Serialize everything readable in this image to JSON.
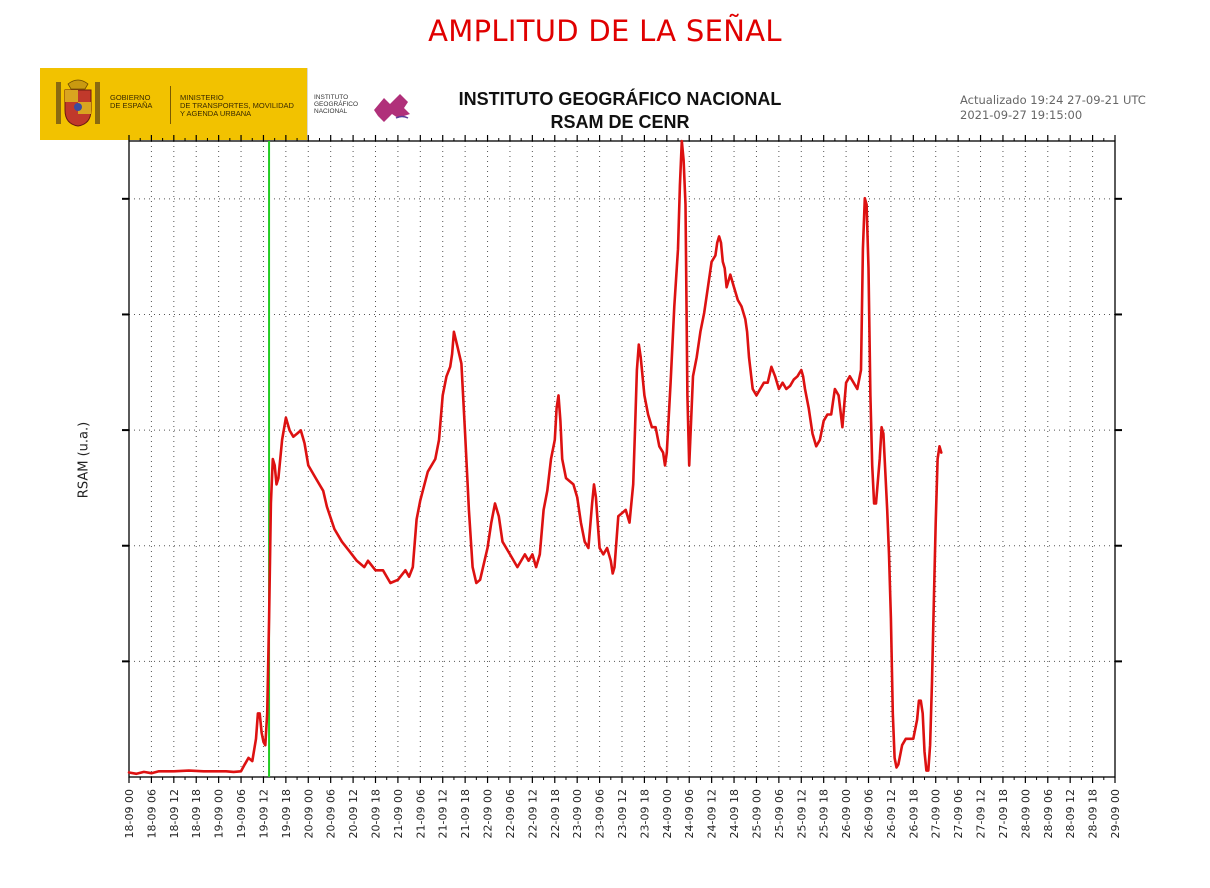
{
  "page_title": "AMPLITUD DE LA SEÑAL",
  "logos": {
    "gobierno": "GOBIERNO\nDE ESPAÑA",
    "ministerio": "MINISTERIO\nDE TRANSPORTES, MOVILIDAD\nY AGENDA URBANA",
    "instituto": "INSTITUTO\nGEOGRÁFICO\nNACIONAL",
    "colors": {
      "band": "#f2c200",
      "ign_mark": "#b0307a"
    }
  },
  "header": {
    "org": "INSTITUTO GEOGRÁFICO NACIONAL",
    "subtitle": "RSAM DE CENR",
    "updated": "Actualizado 19:24 27-09-21 UTC",
    "timestamp": "2021-09-27 19:15:00"
  },
  "chart_data": {
    "type": "line",
    "ylabel": "RSAM (u.a.)",
    "xlabel": "",
    "x_unit": "hours since 18-09 00:00",
    "xlim": [
      0,
      264
    ],
    "ylim": [
      0,
      1
    ],
    "y_tick_labels_shown": false,
    "grid": true,
    "x_tick_labels": [
      "18-09 00",
      "18-09 06",
      "18-09 12",
      "18-09 18",
      "19-09 00",
      "19-09 06",
      "19-09 12",
      "19-09 18",
      "20-09 00",
      "20-09 06",
      "20-09 12",
      "20-09 18",
      "21-09 00",
      "21-09 06",
      "21-09 12",
      "21-09 18",
      "22-09 00",
      "22-09 06",
      "22-09 12",
      "22-09 18",
      "23-09 00",
      "23-09 06",
      "23-09 12",
      "23-09 18",
      "24-09 00",
      "24-09 06",
      "24-09 12",
      "24-09 18",
      "25-09 00",
      "25-09 06",
      "25-09 12",
      "25-09 18",
      "26-09 00",
      "26-09 06",
      "26-09 12",
      "26-09 18",
      "27-09 00",
      "27-09 06",
      "27-09 12",
      "27-09 18",
      "28-09 00",
      "28-09 06",
      "28-09 12",
      "28-09 18",
      "29-09 00"
    ],
    "marker_line": {
      "x": 37.5,
      "color": "#22cc22"
    },
    "series": [
      {
        "color": "#dd1111",
        "points": [
          [
            0,
            0.007
          ],
          [
            2,
            0.005
          ],
          [
            4,
            0.008
          ],
          [
            6,
            0.006
          ],
          [
            8,
            0.009
          ],
          [
            12,
            0.009
          ],
          [
            16,
            0.01
          ],
          [
            20,
            0.009
          ],
          [
            24,
            0.009
          ],
          [
            26,
            0.009
          ],
          [
            28,
            0.008
          ],
          [
            30,
            0.009
          ],
          [
            31,
            0.02
          ],
          [
            32,
            0.03
          ],
          [
            33,
            0.025
          ],
          [
            34,
            0.06
          ],
          [
            34.5,
            0.1
          ],
          [
            35,
            0.1
          ],
          [
            35.5,
            0.07
          ],
          [
            36,
            0.055
          ],
          [
            36.5,
            0.05
          ],
          [
            37,
            0.1
          ],
          [
            37.5,
            0.25
          ],
          [
            38,
            0.43
          ],
          [
            38.5,
            0.5
          ],
          [
            39,
            0.49
          ],
          [
            39.5,
            0.46
          ],
          [
            40,
            0.47
          ],
          [
            41,
            0.53
          ],
          [
            42,
            0.565
          ],
          [
            43,
            0.545
          ],
          [
            44,
            0.535
          ],
          [
            45,
            0.54
          ],
          [
            46,
            0.545
          ],
          [
            47,
            0.525
          ],
          [
            48,
            0.49
          ],
          [
            50,
            0.47
          ],
          [
            52,
            0.45
          ],
          [
            53,
            0.425
          ],
          [
            55,
            0.39
          ],
          [
            57,
            0.37
          ],
          [
            59,
            0.355
          ],
          [
            61,
            0.34
          ],
          [
            63,
            0.33
          ],
          [
            64,
            0.34
          ],
          [
            66,
            0.325
          ],
          [
            68,
            0.325
          ],
          [
            70,
            0.305
          ],
          [
            72,
            0.31
          ],
          [
            74,
            0.325
          ],
          [
            75,
            0.315
          ],
          [
            76,
            0.33
          ],
          [
            77,
            0.405
          ],
          [
            78,
            0.435
          ],
          [
            80,
            0.48
          ],
          [
            82,
            0.5
          ],
          [
            83,
            0.53
          ],
          [
            84,
            0.6
          ],
          [
            85,
            0.63
          ],
          [
            86,
            0.645
          ],
          [
            86.5,
            0.665
          ],
          [
            87,
            0.7
          ],
          [
            88,
            0.675
          ],
          [
            89,
            0.65
          ],
          [
            90,
            0.54
          ],
          [
            91,
            0.42
          ],
          [
            92,
            0.33
          ],
          [
            93,
            0.305
          ],
          [
            94,
            0.31
          ],
          [
            96,
            0.36
          ],
          [
            97,
            0.4
          ],
          [
            98,
            0.43
          ],
          [
            99,
            0.41
          ],
          [
            100,
            0.37
          ],
          [
            102,
            0.35
          ],
          [
            104,
            0.33
          ],
          [
            106,
            0.35
          ],
          [
            107,
            0.34
          ],
          [
            108,
            0.35
          ],
          [
            109,
            0.33
          ],
          [
            110,
            0.35
          ],
          [
            111,
            0.42
          ],
          [
            112,
            0.45
          ],
          [
            113,
            0.5
          ],
          [
            114,
            0.53
          ],
          [
            114.5,
            0.58
          ],
          [
            115,
            0.6
          ],
          [
            115.5,
            0.56
          ],
          [
            116,
            0.5
          ],
          [
            117,
            0.47
          ],
          [
            119,
            0.46
          ],
          [
            120,
            0.44
          ],
          [
            121,
            0.4
          ],
          [
            122,
            0.37
          ],
          [
            123,
            0.36
          ],
          [
            124,
            0.43
          ],
          [
            124.5,
            0.46
          ],
          [
            125,
            0.44
          ],
          [
            125.5,
            0.4
          ],
          [
            126,
            0.36
          ],
          [
            127,
            0.35
          ],
          [
            128,
            0.36
          ],
          [
            129,
            0.34
          ],
          [
            129.5,
            0.32
          ],
          [
            130,
            0.33
          ],
          [
            131,
            0.41
          ],
          [
            132,
            0.415
          ],
          [
            133,
            0.42
          ],
          [
            134,
            0.4
          ],
          [
            135,
            0.46
          ],
          [
            135.5,
            0.55
          ],
          [
            136,
            0.64
          ],
          [
            136.5,
            0.68
          ],
          [
            137,
            0.66
          ],
          [
            138,
            0.6
          ],
          [
            139,
            0.57
          ],
          [
            140,
            0.55
          ],
          [
            141,
            0.55
          ],
          [
            142,
            0.52
          ],
          [
            143,
            0.51
          ],
          [
            143.5,
            0.49
          ],
          [
            144,
            0.51
          ],
          [
            145,
            0.62
          ],
          [
            146,
            0.74
          ],
          [
            147,
            0.83
          ],
          [
            147.5,
            0.93
          ],
          [
            148,
            1.0
          ],
          [
            148.5,
            0.97
          ],
          [
            149,
            0.9
          ],
          [
            149.5,
            0.6
          ],
          [
            150,
            0.49
          ],
          [
            151,
            0.63
          ],
          [
            152,
            0.66
          ],
          [
            153,
            0.7
          ],
          [
            154,
            0.73
          ],
          [
            155,
            0.77
          ],
          [
            156,
            0.81
          ],
          [
            157,
            0.82
          ],
          [
            157.5,
            0.84
          ],
          [
            158,
            0.85
          ],
          [
            158.5,
            0.84
          ],
          [
            159,
            0.81
          ],
          [
            159.5,
            0.8
          ],
          [
            160,
            0.77
          ],
          [
            161,
            0.79
          ],
          [
            162,
            0.77
          ],
          [
            163,
            0.75
          ],
          [
            164,
            0.74
          ],
          [
            165,
            0.72
          ],
          [
            165.5,
            0.7
          ],
          [
            166,
            0.66
          ],
          [
            167,
            0.61
          ],
          [
            168,
            0.6
          ],
          [
            169,
            0.61
          ],
          [
            170,
            0.62
          ],
          [
            171,
            0.62
          ],
          [
            172,
            0.645
          ],
          [
            173,
            0.63
          ],
          [
            174,
            0.61
          ],
          [
            175,
            0.62
          ],
          [
            176,
            0.61
          ],
          [
            177,
            0.615
          ],
          [
            178,
            0.625
          ],
          [
            179,
            0.63
          ],
          [
            179.5,
            0.635
          ],
          [
            180,
            0.64
          ],
          [
            180.5,
            0.63
          ],
          [
            181,
            0.61
          ],
          [
            182,
            0.58
          ],
          [
            183,
            0.54
          ],
          [
            184,
            0.52
          ],
          [
            185,
            0.53
          ],
          [
            186,
            0.56
          ],
          [
            187,
            0.57
          ],
          [
            188,
            0.57
          ],
          [
            188.5,
            0.59
          ],
          [
            189,
            0.61
          ],
          [
            190,
            0.6
          ],
          [
            191,
            0.55
          ],
          [
            192,
            0.62
          ],
          [
            193,
            0.63
          ],
          [
            194,
            0.62
          ],
          [
            195,
            0.61
          ],
          [
            196,
            0.64
          ],
          [
            196.5,
            0.83
          ],
          [
            197,
            0.91
          ],
          [
            197.5,
            0.9
          ],
          [
            198,
            0.8
          ],
          [
            198.5,
            0.6
          ],
          [
            199,
            0.49
          ],
          [
            199.5,
            0.43
          ],
          [
            200,
            0.43
          ],
          [
            201,
            0.5
          ],
          [
            201.5,
            0.55
          ],
          [
            202,
            0.54
          ],
          [
            202.5,
            0.48
          ],
          [
            203,
            0.42
          ],
          [
            203.5,
            0.35
          ],
          [
            204,
            0.25
          ],
          [
            204.5,
            0.1
          ],
          [
            205,
            0.03
          ],
          [
            205.5,
            0.015
          ],
          [
            206,
            0.02
          ],
          [
            207,
            0.05
          ],
          [
            208,
            0.06
          ],
          [
            209,
            0.06
          ],
          [
            210,
            0.06
          ],
          [
            211,
            0.09
          ],
          [
            211.5,
            0.12
          ],
          [
            212,
            0.12
          ],
          [
            212.5,
            0.1
          ],
          [
            213,
            0.04
          ],
          [
            213.5,
            0.01
          ],
          [
            214,
            0.01
          ],
          [
            214.5,
            0.05
          ],
          [
            215,
            0.15
          ],
          [
            215.5,
            0.28
          ],
          [
            216,
            0.4
          ],
          [
            216.5,
            0.5
          ],
          [
            217,
            0.52
          ],
          [
            217.5,
            0.51
          ]
        ]
      }
    ]
  }
}
